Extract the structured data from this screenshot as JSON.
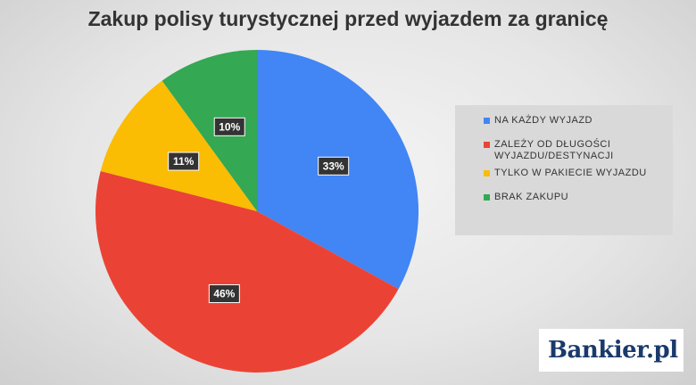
{
  "chart_data": {
    "type": "pie",
    "title": "Zakup polisy turystycznej przed wyjazdem za granicę",
    "slices": [
      {
        "label": "NA KAŻDY WYJAZD",
        "value": 33,
        "value_label": "33%",
        "color": "#4285F4"
      },
      {
        "label": "ZALEŻY OD DŁUGOŚCI WYJAZDU/DESTYNACJI",
        "value": 46,
        "value_label": "46%",
        "color": "#EA4335"
      },
      {
        "label": "TYLKO W PAKIECIE WYJAZDU",
        "value": 11,
        "value_label": "11%",
        "color": "#FBBC04"
      },
      {
        "label": "BRAK ZAKUPU",
        "value": 10,
        "value_label": "10%",
        "color": "#34A853"
      }
    ],
    "legend_position": "right"
  },
  "logo": {
    "text": "Bankier.pl"
  }
}
